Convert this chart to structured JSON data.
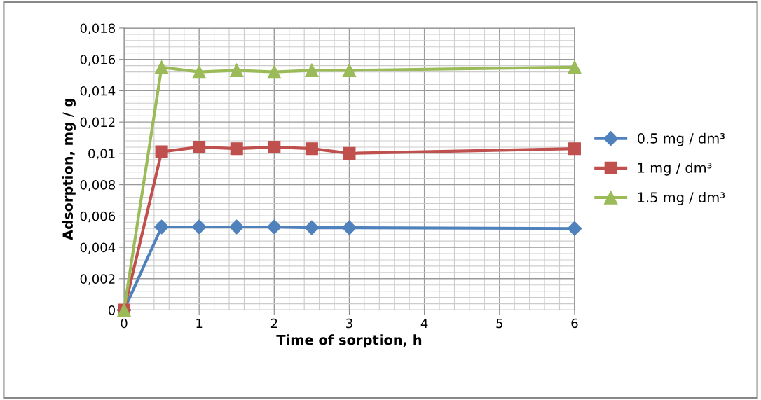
{
  "chart_data": {
    "type": "line",
    "xlabel": "Time of sorption, h",
    "ylabel": "Adsorption, mg / g",
    "x": [
      0,
      0.5,
      1,
      1.5,
      2,
      2.5,
      3,
      6
    ],
    "series": [
      {
        "name": "0.5 mg / dm³",
        "color": "#4f81bd",
        "marker": "diamond",
        "values": [
          0,
          0.0053,
          0.0053,
          0.0053,
          0.0053,
          0.00525,
          0.00525,
          0.0052
        ]
      },
      {
        "name": "1 mg / dm³",
        "color": "#c0504d",
        "marker": "square",
        "values": [
          0,
          0.0101,
          0.0104,
          0.0103,
          0.0104,
          0.0103,
          0.01,
          0.0103
        ]
      },
      {
        "name": "1.5 mg / dm³",
        "color": "#9bbb59",
        "marker": "triangle",
        "values": [
          0,
          0.0155,
          0.0152,
          0.0153,
          0.0152,
          0.0153,
          0.0153,
          0.0155
        ]
      }
    ],
    "xlim": [
      0,
      6
    ],
    "xticks": [
      0,
      1,
      2,
      3,
      4,
      5,
      6
    ],
    "ylim": [
      0,
      0.018
    ],
    "yticks": [
      {
        "value": 0,
        "label": "0"
      },
      {
        "value": 0.002,
        "label": "0,002"
      },
      {
        "value": 0.004,
        "label": "0,004"
      },
      {
        "value": 0.006,
        "label": "0,006"
      },
      {
        "value": 0.008,
        "label": "0,008"
      },
      {
        "value": 0.01,
        "label": "0,01"
      },
      {
        "value": 0.012,
        "label": "0,012"
      },
      {
        "value": 0.014,
        "label": "0,014"
      },
      {
        "value": 0.016,
        "label": "0,016"
      },
      {
        "value": 0.018,
        "label": "0,018"
      }
    ],
    "grid": true,
    "legend": "right",
    "line_style": "solid"
  }
}
